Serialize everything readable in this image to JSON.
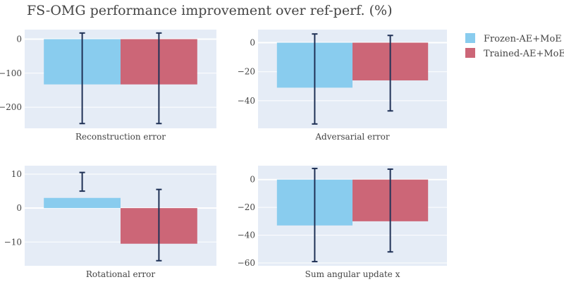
{
  "figure": {
    "title": "FS-OMG performance improvement over ref-perf. (%)",
    "legend": {
      "placement": "top-right",
      "items": [
        {
          "label": "Frozen-AE+MoE",
          "color": "#89CCEE"
        },
        {
          "label": "Trained-AE+MoE",
          "color": "#CC6677"
        }
      ]
    }
  },
  "colors": {
    "plot_background": "#E5ECF6",
    "grid": "#FFFFFF",
    "error_bar": "#1F3156",
    "axis_text": "#444444"
  },
  "chart_data": [
    {
      "type": "bar",
      "xlabel": "Reconstruction error",
      "ylim": [
        -262,
        28
      ],
      "yticks": [
        0,
        -100,
        -200
      ],
      "ytick_labels": [
        "0",
        "−100",
        "−200"
      ],
      "series": [
        {
          "name": "Frozen-AE+MoE",
          "values": [
            -133
          ],
          "error_high": [
            18
          ],
          "error_low": [
            -248
          ]
        },
        {
          "name": "Trained-AE+MoE",
          "values": [
            -133
          ],
          "error_high": [
            18
          ],
          "error_low": [
            -248
          ]
        }
      ]
    },
    {
      "type": "bar",
      "xlabel": "Adversarial error",
      "ylim": [
        -59,
        9
      ],
      "yticks": [
        0,
        -20,
        -40
      ],
      "ytick_labels": [
        "0",
        "−20",
        "−40"
      ],
      "series": [
        {
          "name": "Frozen-AE+MoE",
          "values": [
            -31
          ],
          "error_high": [
            6
          ],
          "error_low": [
            -56
          ]
        },
        {
          "name": "Trained-AE+MoE",
          "values": [
            -26
          ],
          "error_high": [
            5
          ],
          "error_low": [
            -47
          ]
        }
      ]
    },
    {
      "type": "bar",
      "xlabel": "Rotational error",
      "ylim": [
        -17,
        12.5
      ],
      "yticks": [
        10,
        0,
        -10
      ],
      "ytick_labels": [
        "10",
        "0",
        "−10"
      ],
      "series": [
        {
          "name": "Frozen-AE+MoE",
          "values": [
            3
          ],
          "error_high": [
            10.5
          ],
          "error_low": [
            5
          ]
        },
        {
          "name": "Trained-AE+MoE",
          "values": [
            -10.5
          ],
          "error_high": [
            5.5
          ],
          "error_low": [
            -15.5
          ]
        }
      ]
    },
    {
      "type": "bar",
      "xlabel": "Sum angular update x",
      "ylim": [
        -62,
        10
      ],
      "yticks": [
        0,
        -20,
        -40,
        -60
      ],
      "ytick_labels": [
        "0",
        "−20",
        "−40",
        "−60"
      ],
      "series": [
        {
          "name": "Frozen-AE+MoE",
          "values": [
            -33
          ],
          "error_high": [
            8
          ],
          "error_low": [
            -59
          ]
        },
        {
          "name": "Trained-AE+MoE",
          "values": [
            -30
          ],
          "error_high": [
            7.5
          ],
          "error_low": [
            -52
          ]
        }
      ]
    }
  ]
}
